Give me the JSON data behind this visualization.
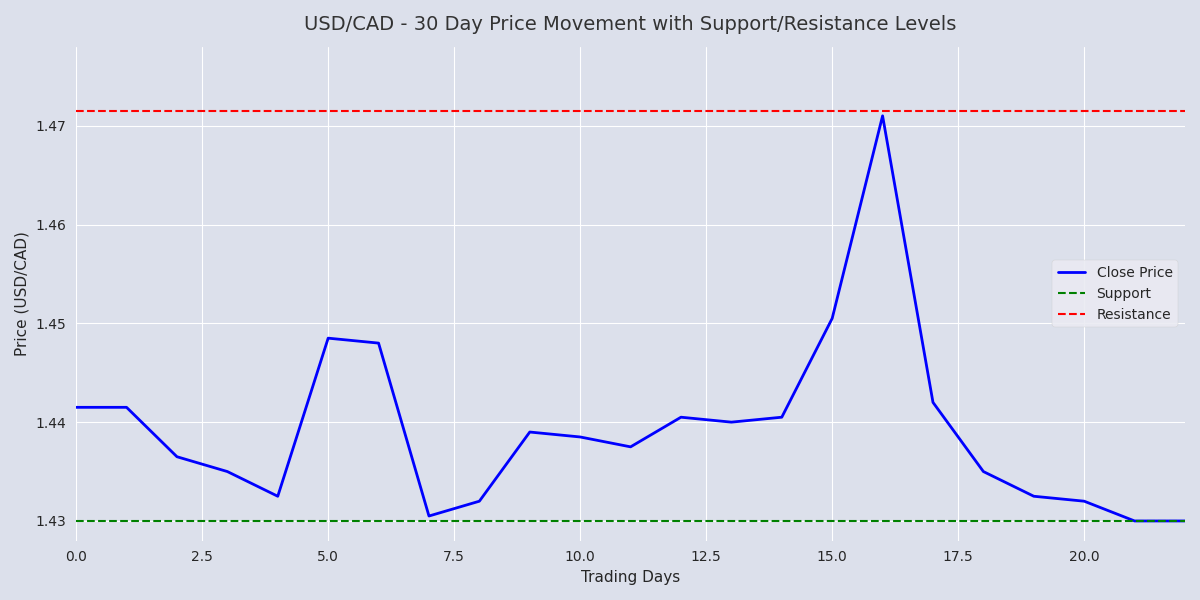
{
  "title": "USD/CAD - 30 Day Price Movement with Support/Resistance Levels",
  "xlabel": "Trading Days",
  "ylabel": "Price (USD/CAD)",
  "support": 1.43,
  "resistance": 1.4715,
  "line_color": "blue",
  "support_color": "green",
  "resistance_color": "red",
  "background_color": "#dce0eb",
  "days": [
    0,
    1,
    2,
    3,
    4,
    5,
    6,
    7,
    8,
    9,
    10,
    11,
    12,
    13,
    14,
    15,
    16,
    17,
    18,
    19,
    20,
    21,
    22
  ],
  "prices": [
    1.4415,
    1.4415,
    1.4365,
    1.435,
    1.4325,
    1.4485,
    1.448,
    1.4305,
    1.432,
    1.439,
    1.4385,
    1.4375,
    1.4405,
    1.44,
    1.4405,
    1.4505,
    1.471,
    1.442,
    1.435,
    1.4325,
    1.432,
    1.43,
    1.43
  ],
  "ylim": [
    1.428,
    1.478
  ],
  "xlim": [
    0,
    22
  ],
  "figsize": [
    12,
    6
  ],
  "dpi": 100,
  "title_fontsize": 14,
  "legend_loc": "center right"
}
